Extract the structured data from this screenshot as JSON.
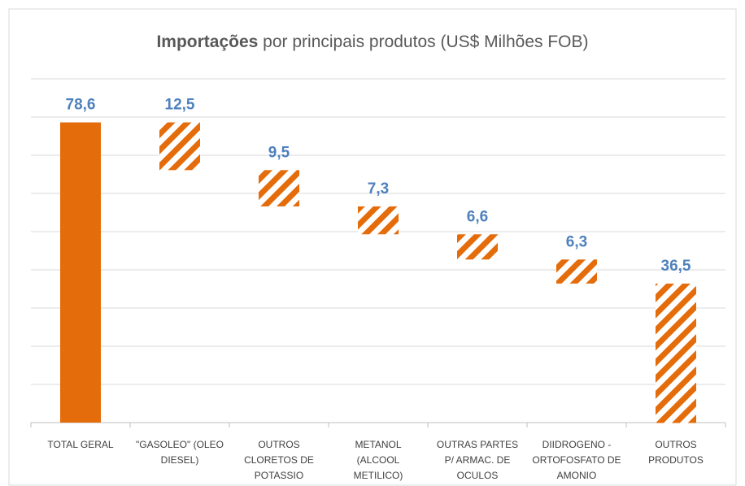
{
  "chart_data": {
    "type": "waterfall",
    "title": [
      "Importações",
      " por principais produtos (US$ Milhões FOB)"
    ],
    "categories": [
      [
        "TOTAL GERAL"
      ],
      [
        "\"GASOLEO\" (OLEO",
        "DIESEL)"
      ],
      [
        "OUTROS",
        "CLORETOS DE",
        "POTASSIO"
      ],
      [
        "METANOL",
        "(ALCOOL",
        "METILICO)"
      ],
      [
        "OUTRAS PARTES",
        "P/ ARMAC. DE",
        "OCULOS"
      ],
      [
        "DIIDROGENO -",
        "ORTOFOSFATO DE",
        "AMONIO"
      ],
      [
        "OUTROS",
        "PRODUTOS"
      ]
    ],
    "values": [
      78.6,
      12.5,
      9.5,
      7.3,
      6.6,
      6.3,
      36.5
    ],
    "value_labels": [
      "78,6",
      "12,5",
      "9,5",
      "7,3",
      "6,6",
      "6,3",
      "36,5"
    ],
    "color": "#e46c0a",
    "label_color": "#4f81bd",
    "ylim": [
      0,
      90
    ],
    "yticks": [
      0,
      10,
      20,
      30,
      40,
      50,
      60,
      70,
      80,
      90
    ],
    "grid": true
  }
}
